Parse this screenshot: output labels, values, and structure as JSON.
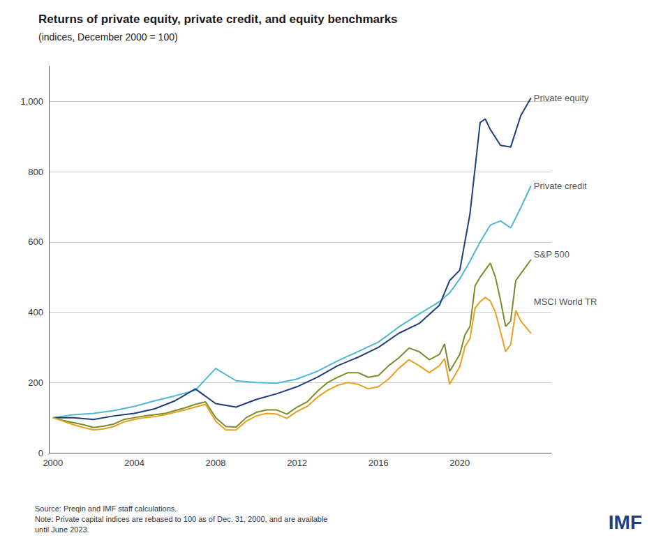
{
  "chart_data": {
    "type": "line",
    "title": "Returns of private equity, private credit, and equity benchmarks",
    "subtitle": "(indices, December 2000 = 100)",
    "source_note": "Source: Preqin and IMF staff calculations.\nNote: Private capital indices are rebased to 100 as of Dec. 31, 2000, and are available\nuntil June 2023.",
    "logo": "IMF",
    "xlim": [
      1999.8,
      2024.5
    ],
    "xticks": [
      2000,
      2004,
      2008,
      2012,
      2016,
      2020
    ],
    "ylim": [
      0,
      1100
    ],
    "yticks": [
      0,
      200,
      400,
      600,
      800,
      {
        "value": 1000,
        "label": "1,000"
      }
    ],
    "grid": true,
    "series": [
      {
        "name": "Private credit",
        "color": "#4db8d4",
        "x": [
          2000,
          2001,
          2002,
          2003,
          2004,
          2005,
          2006,
          2007,
          2008,
          2009,
          2010,
          2011,
          2012,
          2013,
          2014,
          2015,
          2016,
          2017,
          2018,
          2019,
          2019.5,
          2020,
          2020.5,
          2021,
          2021.5,
          2022,
          2022.5,
          2023,
          2023.5
        ],
        "values": [
          100,
          108,
          112,
          120,
          132,
          148,
          162,
          178,
          240,
          205,
          200,
          198,
          210,
          232,
          262,
          288,
          315,
          358,
          395,
          430,
          455,
          495,
          545,
          600,
          648,
          660,
          640,
          698,
          760
        ]
      },
      {
        "name": "Private equity",
        "color": "#1f3d7a",
        "x": [
          2000,
          2001,
          2002,
          2003,
          2004,
          2005,
          2006,
          2007,
          2008,
          2009,
          2010,
          2011,
          2012,
          2013,
          2014,
          2015,
          2016,
          2017,
          2018,
          2019,
          2019.5,
          2020,
          2020.5,
          2021,
          2021.25,
          2021.5,
          2022,
          2022.5,
          2023,
          2023.5
        ],
        "values": [
          100,
          100,
          95,
          105,
          112,
          125,
          148,
          182,
          140,
          130,
          152,
          168,
          188,
          215,
          248,
          272,
          300,
          340,
          368,
          420,
          490,
          520,
          680,
          940,
          950,
          920,
          875,
          870,
          960,
          1010
        ]
      },
      {
        "name": "S&P 500",
        "color": "#7a8c2a",
        "x": [
          2000,
          2000.5,
          2001,
          2001.5,
          2002,
          2002.5,
          2003,
          2003.5,
          2004,
          2004.5,
          2005,
          2005.5,
          2006,
          2006.5,
          2007,
          2007.5,
          2008,
          2008.5,
          2009,
          2009.5,
          2010,
          2010.5,
          2011,
          2011.5,
          2012,
          2012.5,
          2013,
          2013.5,
          2014,
          2014.5,
          2015,
          2015.5,
          2016,
          2016.5,
          2017,
          2017.5,
          2018,
          2018.5,
          2019,
          2019.25,
          2019.5,
          2020,
          2020.25,
          2020.5,
          2020.75,
          2021,
          2021.25,
          2021.5,
          2021.75,
          2022,
          2022.25,
          2022.5,
          2022.75,
          2023,
          2023.5
        ],
        "values": [
          100,
          92,
          86,
          80,
          72,
          76,
          82,
          95,
          100,
          105,
          108,
          112,
          120,
          128,
          138,
          145,
          100,
          75,
          73,
          100,
          115,
          122,
          122,
          110,
          130,
          145,
          175,
          200,
          215,
          228,
          228,
          215,
          220,
          248,
          270,
          298,
          288,
          265,
          280,
          310,
          232,
          280,
          335,
          360,
          475,
          500,
          520,
          540,
          500,
          435,
          360,
          375,
          490,
          510,
          550
        ]
      },
      {
        "name": "MSCI World TR",
        "color": "#e8a020",
        "x": [
          2000,
          2000.5,
          2001,
          2001.5,
          2002,
          2002.5,
          2003,
          2003.5,
          2004,
          2004.5,
          2005,
          2005.5,
          2006,
          2006.5,
          2007,
          2007.5,
          2008,
          2008.5,
          2009,
          2009.5,
          2010,
          2010.5,
          2011,
          2011.5,
          2012,
          2012.5,
          2013,
          2013.5,
          2014,
          2014.5,
          2015,
          2015.5,
          2016,
          2016.5,
          2017,
          2017.5,
          2018,
          2018.5,
          2019,
          2019.25,
          2019.5,
          2020,
          2020.25,
          2020.5,
          2020.75,
          2021,
          2021.25,
          2021.5,
          2021.75,
          2022,
          2022.25,
          2022.5,
          2022.75,
          2023,
          2023.5
        ],
        "values": [
          100,
          90,
          80,
          72,
          65,
          68,
          75,
          88,
          95,
          100,
          103,
          108,
          115,
          122,
          130,
          138,
          90,
          65,
          65,
          90,
          105,
          112,
          110,
          98,
          118,
          132,
          158,
          178,
          192,
          200,
          195,
          182,
          188,
          210,
          240,
          265,
          248,
          228,
          248,
          268,
          195,
          245,
          302,
          325,
          412,
          430,
          442,
          432,
          400,
          345,
          288,
          308,
          405,
          375,
          340
        ]
      }
    ],
    "annotations": [
      {
        "text": "Private equity",
        "x": 2023.5,
        "y": 1010
      },
      {
        "text": "Private credit",
        "x": 2023.5,
        "y": 760
      },
      {
        "text": "S&P 500",
        "x": 2023.5,
        "y": 565
      },
      {
        "text": "MSCI World TR",
        "x": 2023.5,
        "y": 430
      }
    ]
  }
}
